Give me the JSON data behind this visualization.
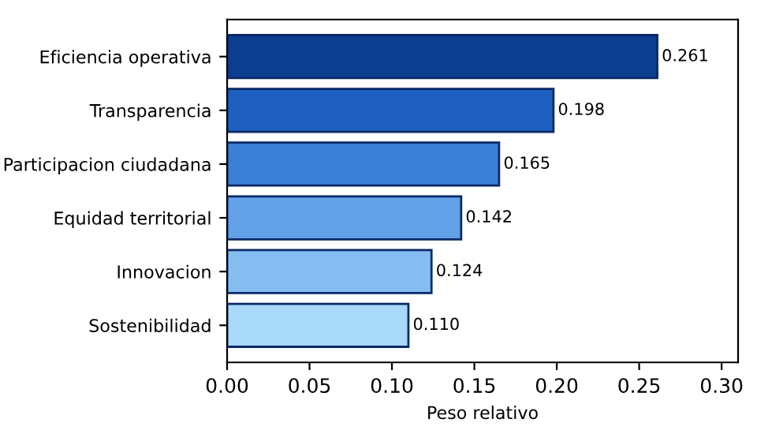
{
  "chart_data": {
    "type": "bar",
    "orientation": "horizontal",
    "xlabel": "Peso relativo",
    "categories": [
      "Eficiencia operativa",
      "Transparencia",
      "Participacion ciudadana",
      "Equidad territorial",
      "Innovacion",
      "Sostenibilidad"
    ],
    "values": [
      0.261,
      0.198,
      0.165,
      0.142,
      0.124,
      0.11
    ],
    "value_labels": [
      "0.261",
      "0.198",
      "0.165",
      "0.142",
      "0.124",
      "0.110"
    ],
    "colors": [
      "#0b3d91",
      "#1f5fbf",
      "#3b7fd6",
      "#62a1e8",
      "#86bdf0",
      "#a9d9f8"
    ],
    "xlim": [
      0,
      0.31
    ],
    "xticks": [
      {
        "value": 0,
        "label": "0.00"
      },
      {
        "value": 0.05,
        "label": "0.05"
      },
      {
        "value": 0.1,
        "label": "0.10"
      },
      {
        "value": 0.15,
        "label": "0.15"
      },
      {
        "value": 0.2,
        "label": "0.20"
      },
      {
        "value": 0.25,
        "label": "0.25"
      },
      {
        "value": 0.3,
        "label": "0.30"
      }
    ],
    "grid": false
  }
}
